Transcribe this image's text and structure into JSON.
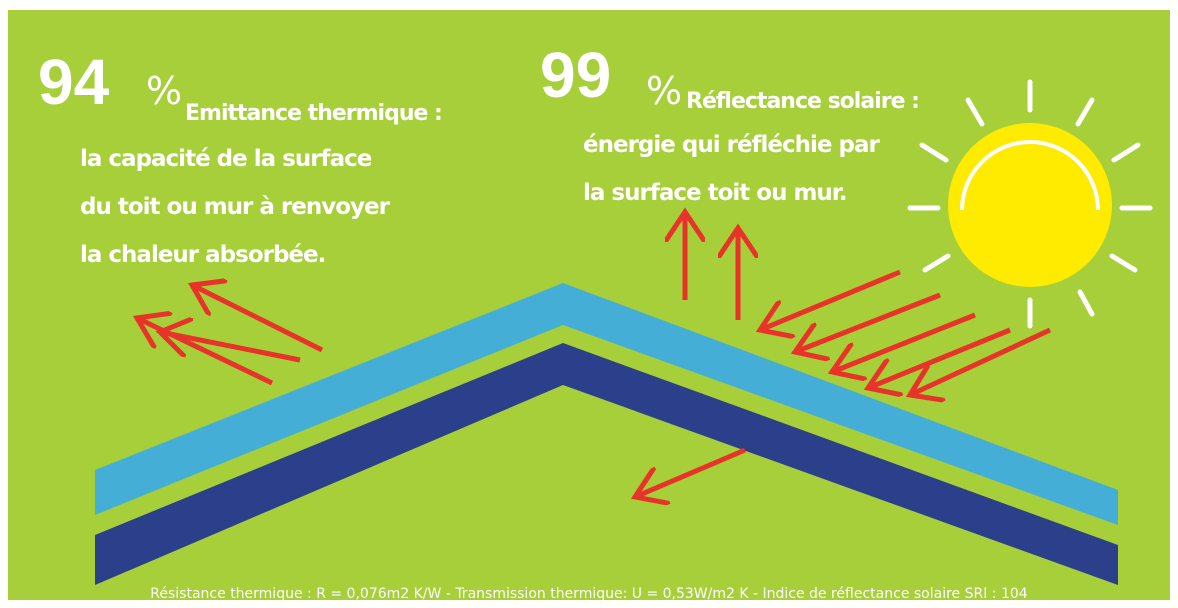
{
  "left": {
    "value": "94",
    "unit": "%",
    "title": "Emittance thermique :",
    "lines": [
      "la capacité de la surface",
      "du toit ou mur à  renvoyer",
      "la chaleur absorbée."
    ]
  },
  "right": {
    "value": "99",
    "unit": "%",
    "title": "Réflectance solaire :",
    "lines": [
      "énergie qui réfléchie par",
      "la surface toit ou mur."
    ]
  },
  "footer": "Résistance thermique : R = 0,076m2 K/W - Transmission thermique: U = 0,53W/m2 K - Indice de réflectance solaire SRI : 104"
}
